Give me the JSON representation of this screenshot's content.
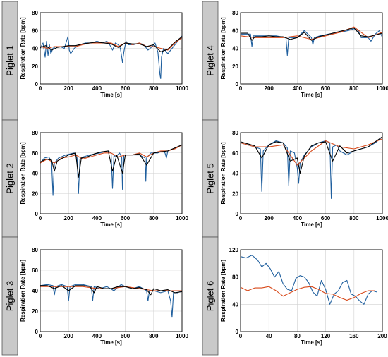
{
  "chart_data": [
    {
      "type": "line",
      "panel_label": "Piglet 1",
      "xlabel": "Time [s]",
      "ylabel": "Respiration Rate [bpm]",
      "xlim": [
        0,
        1000
      ],
      "ylim": [
        0,
        80
      ],
      "xticks": [
        0,
        200,
        400,
        600,
        800,
        1000
      ],
      "yticks": [
        0,
        20,
        40,
        60,
        80
      ],
      "grid": true,
      "colors": [
        "#1f5f9e",
        "#d84a1b",
        "#000000"
      ],
      "series": [
        {
          "x": [
            0,
            20,
            35,
            45,
            55,
            65,
            75,
            90,
            110,
            140,
            170,
            195,
            200,
            205,
            215,
            240,
            280,
            320,
            360,
            400,
            440,
            470,
            490,
            510,
            530,
            550,
            565,
            575,
            580,
            590,
            605,
            620,
            660,
            700,
            730,
            760,
            790,
            810,
            830,
            845,
            850,
            855,
            870,
            900,
            940,
            970,
            1000
          ],
          "values": [
            40,
            46,
            30,
            48,
            32,
            44,
            34,
            40,
            42,
            42,
            40,
            53,
            48,
            38,
            34,
            40,
            44,
            46,
            46,
            48,
            46,
            48,
            44,
            38,
            46,
            44,
            40,
            30,
            24,
            36,
            48,
            44,
            44,
            46,
            44,
            38,
            42,
            46,
            36,
            10,
            6,
            30,
            40,
            34,
            42,
            48,
            54
          ]
        },
        {
          "x": [
            0,
            50,
            100,
            150,
            200,
            250,
            300,
            350,
            400,
            450,
            500,
            550,
            600,
            650,
            700,
            750,
            800,
            850,
            900,
            950,
            1000
          ],
          "values": [
            42,
            40,
            42,
            42,
            42,
            42,
            44,
            46,
            46,
            46,
            46,
            42,
            46,
            44,
            46,
            42,
            42,
            40,
            38,
            46,
            52
          ]
        },
        {
          "x": [
            0,
            40,
            80,
            120,
            160,
            200,
            250,
            300,
            350,
            400,
            450,
            500,
            550,
            600,
            650,
            700,
            750,
            800,
            850,
            900,
            950,
            1000
          ],
          "values": [
            41,
            43,
            38,
            41,
            42,
            43,
            43,
            45,
            46,
            47,
            46,
            45,
            41,
            46,
            45,
            45,
            42,
            44,
            36,
            39,
            47,
            53
          ]
        }
      ]
    },
    {
      "type": "line",
      "panel_label": "Piglet 2",
      "xlabel": "Time [s]",
      "ylabel": "Respiration Rate [bpm]",
      "xlim": [
        0,
        1000
      ],
      "ylim": [
        0,
        80
      ],
      "xticks": [
        0,
        200,
        400,
        600,
        800,
        1000
      ],
      "yticks": [
        0,
        20,
        40,
        60,
        80
      ],
      "grid": true,
      "colors": [
        "#1f5f9e",
        "#d84a1b",
        "#000000"
      ],
      "series": [
        {
          "x": [
            0,
            30,
            60,
            80,
            90,
            100,
            130,
            180,
            240,
            260,
            270,
            280,
            300,
            350,
            420,
            480,
            500,
            510,
            520,
            530,
            560,
            575,
            580,
            590,
            600,
            650,
            700,
            740,
            745,
            750,
            780,
            830,
            860,
            880,
            890,
            900,
            940,
            1000
          ],
          "values": [
            50,
            55,
            56,
            52,
            18,
            50,
            55,
            58,
            60,
            55,
            20,
            54,
            56,
            58,
            60,
            62,
            60,
            25,
            58,
            56,
            60,
            55,
            24,
            58,
            58,
            58,
            58,
            55,
            32,
            55,
            60,
            60,
            62,
            60,
            55,
            62,
            64,
            68
          ]
        },
        {
          "x": [
            0,
            50,
            100,
            150,
            200,
            250,
            300,
            350,
            400,
            450,
            500,
            550,
            600,
            650,
            700,
            750,
            800,
            850,
            900,
            950,
            1000
          ],
          "values": [
            50,
            54,
            50,
            55,
            56,
            58,
            54,
            56,
            58,
            60,
            60,
            56,
            58,
            58,
            60,
            56,
            60,
            62,
            62,
            64,
            68
          ]
        },
        {
          "x": [
            0,
            40,
            80,
            100,
            120,
            160,
            200,
            250,
            270,
            290,
            330,
            380,
            430,
            480,
            510,
            540,
            580,
            600,
            650,
            700,
            750,
            800,
            850,
            900,
            950,
            1000
          ],
          "values": [
            51,
            54,
            53,
            42,
            52,
            55,
            58,
            60,
            36,
            55,
            56,
            59,
            61,
            62,
            42,
            58,
            40,
            58,
            58,
            59,
            48,
            60,
            61,
            62,
            65,
            68
          ]
        }
      ]
    },
    {
      "type": "line",
      "panel_label": "Piglet 3",
      "xlabel": "Time [s]",
      "ylabel": "Respiration Rate [bpm]",
      "xlim": [
        0,
        1000
      ],
      "ylim": [
        0,
        80
      ],
      "xticks": [
        0,
        200,
        400,
        600,
        800,
        1000
      ],
      "yticks": [
        0,
        20,
        40,
        60,
        80
      ],
      "grid": true,
      "colors": [
        "#1f5f9e",
        "#d84a1b",
        "#000000"
      ],
      "series": [
        {
          "x": [
            0,
            50,
            90,
            100,
            110,
            150,
            190,
            200,
            210,
            250,
            300,
            360,
            370,
            380,
            420,
            470,
            520,
            570,
            600,
            650,
            700,
            750,
            760,
            770,
            800,
            850,
            900,
            920,
            930,
            940,
            970,
            1000
          ],
          "values": [
            45,
            46,
            45,
            36,
            44,
            46,
            44,
            30,
            44,
            46,
            46,
            44,
            30,
            44,
            42,
            44,
            40,
            46,
            44,
            42,
            44,
            40,
            30,
            40,
            40,
            38,
            40,
            30,
            14,
            38,
            38,
            40
          ]
        },
        {
          "x": [
            0,
            100,
            200,
            300,
            400,
            500,
            600,
            700,
            800,
            900,
            1000
          ],
          "values": [
            44,
            44,
            44,
            44,
            42,
            42,
            44,
            42,
            40,
            40,
            40
          ]
        },
        {
          "x": [
            0,
            50,
            100,
            150,
            200,
            250,
            300,
            350,
            380,
            400,
            450,
            500,
            550,
            600,
            650,
            700,
            750,
            780,
            800,
            850,
            900,
            950,
            1000
          ],
          "values": [
            45,
            45,
            42,
            45,
            40,
            45,
            45,
            44,
            38,
            44,
            42,
            42,
            44,
            44,
            42,
            43,
            41,
            36,
            42,
            40,
            41,
            38,
            39
          ]
        }
      ]
    },
    {
      "type": "line",
      "panel_label": "Piglet 4",
      "xlabel": "Time [s]",
      "ylabel": "Respiration Rate [bpm]",
      "xlim": [
        0,
        1000
      ],
      "ylim": [
        0,
        80
      ],
      "xticks": [
        0,
        200,
        400,
        600,
        800,
        1000
      ],
      "yticks": [
        0,
        20,
        40,
        60,
        80
      ],
      "grid": true,
      "colors": [
        "#1f5f9e",
        "#d84a1b",
        "#000000"
      ],
      "series": [
        {
          "x": [
            0,
            40,
            70,
            80,
            90,
            120,
            180,
            250,
            320,
            330,
            340,
            400,
            450,
            500,
            510,
            520,
            560,
            620,
            700,
            760,
            800,
            830,
            850,
            900,
            920,
            950,
            980,
            1000
          ],
          "values": [
            56,
            56,
            56,
            42,
            54,
            54,
            54,
            54,
            52,
            32,
            52,
            52,
            60,
            52,
            44,
            52,
            54,
            56,
            58,
            60,
            62,
            60,
            52,
            52,
            48,
            56,
            60,
            52
          ]
        },
        {
          "x": [
            0,
            100,
            200,
            300,
            400,
            500,
            600,
            700,
            800,
            900,
            1000
          ],
          "values": [
            54,
            52,
            52,
            52,
            54,
            50,
            54,
            58,
            64,
            52,
            58
          ]
        },
        {
          "x": [
            0,
            50,
            80,
            100,
            150,
            200,
            250,
            300,
            350,
            400,
            450,
            500,
            550,
            600,
            650,
            700,
            750,
            800,
            850,
            900,
            950,
            1000
          ],
          "values": [
            57,
            57,
            49,
            53,
            53,
            54,
            53,
            53,
            50,
            52,
            58,
            49,
            53,
            55,
            57,
            59,
            61,
            63,
            54,
            53,
            55,
            57
          ]
        }
      ]
    },
    {
      "type": "line",
      "panel_label": "Piglet 5",
      "xlabel": "Time [s]",
      "ylabel": "Respiration Rate [bpm]",
      "xlim": [
        0,
        1000
      ],
      "ylim": [
        0,
        80
      ],
      "xticks": [
        0,
        200,
        400,
        600,
        800,
        1000
      ],
      "yticks": [
        0,
        20,
        40,
        60,
        80
      ],
      "grid": true,
      "colors": [
        "#1f5f9e",
        "#d84a1b",
        "#000000"
      ],
      "series": [
        {
          "x": [
            0,
            50,
            100,
            140,
            150,
            160,
            200,
            250,
            300,
            330,
            340,
            350,
            380,
            400,
            410,
            420,
            450,
            500,
            550,
            600,
            630,
            640,
            650,
            680,
            700,
            750,
            800,
            850,
            900,
            950,
            1000
          ],
          "values": [
            70,
            68,
            66,
            64,
            22,
            62,
            68,
            72,
            70,
            65,
            28,
            62,
            60,
            45,
            30,
            50,
            58,
            66,
            70,
            72,
            70,
            15,
            66,
            68,
            62,
            58,
            62,
            64,
            66,
            70,
            76
          ]
        },
        {
          "x": [
            0,
            100,
            200,
            300,
            400,
            500,
            600,
            700,
            800,
            900,
            1000
          ],
          "values": [
            70,
            66,
            66,
            68,
            48,
            62,
            72,
            66,
            64,
            68,
            74
          ]
        },
        {
          "x": [
            0,
            50,
            100,
            150,
            200,
            250,
            300,
            350,
            400,
            420,
            450,
            500,
            550,
            600,
            650,
            700,
            750,
            800,
            850,
            900,
            950,
            1000
          ],
          "values": [
            71,
            69,
            67,
            55,
            68,
            71,
            70,
            52,
            55,
            40,
            57,
            67,
            70,
            71,
            52,
            67,
            60,
            62,
            64,
            66,
            71,
            76
          ]
        }
      ]
    },
    {
      "type": "line",
      "panel_label": "Piglet 6",
      "xlabel": "Time [s]",
      "ylabel": "Respiration Rate [bpm]",
      "xlim": [
        0,
        200
      ],
      "ylim": [
        0,
        120
      ],
      "xticks": [
        0,
        40,
        80,
        120,
        160,
        200
      ],
      "yticks": [
        0,
        40,
        80,
        120
      ],
      "grid": true,
      "colors": [
        "#1f5f9e",
        "#d84a1b"
      ],
      "series": [
        {
          "x": [
            0,
            8,
            16,
            24,
            30,
            36,
            42,
            48,
            54,
            60,
            66,
            72,
            78,
            84,
            90,
            96,
            102,
            108,
            114,
            120,
            126,
            132,
            138,
            144,
            150,
            156,
            162,
            168,
            174,
            180,
            186,
            192
          ],
          "values": [
            110,
            108,
            112,
            105,
            95,
            100,
            92,
            80,
            88,
            70,
            62,
            60,
            78,
            82,
            80,
            72,
            58,
            52,
            75,
            62,
            40,
            55,
            60,
            72,
            75,
            55,
            52,
            45,
            40,
            55,
            60,
            58
          ]
        },
        {
          "x": [
            0,
            10,
            20,
            30,
            40,
            50,
            60,
            70,
            80,
            90,
            100,
            110,
            120,
            130,
            140,
            150,
            160,
            170,
            180,
            190
          ],
          "values": [
            65,
            60,
            64,
            64,
            66,
            60,
            52,
            57,
            62,
            65,
            66,
            62,
            56,
            55,
            50,
            46,
            50,
            56,
            60,
            60
          ]
        }
      ]
    }
  ]
}
